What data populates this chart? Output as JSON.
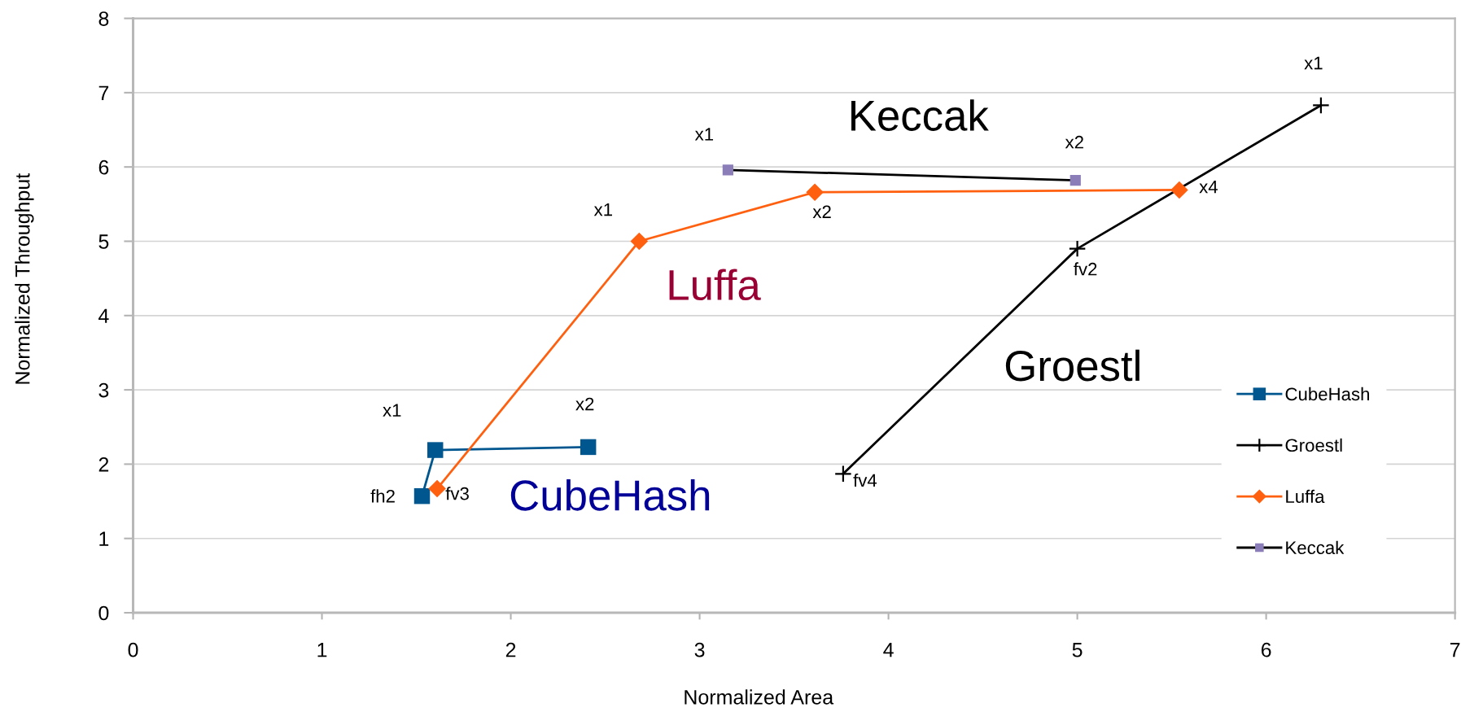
{
  "chart_data": {
    "type": "line",
    "xlabel": "Normalized Area",
    "ylabel": "Normalized Throughput",
    "xlim": [
      0,
      7
    ],
    "ylim": [
      0,
      8
    ],
    "xticks": [
      0,
      1,
      2,
      3,
      4,
      5,
      6,
      7
    ],
    "yticks": [
      0,
      1,
      2,
      3,
      4,
      5,
      6,
      7,
      8
    ],
    "grid": "y",
    "legend": "bottom right",
    "line_style": "solid",
    "series": [
      {
        "name": "CubeHash",
        "color": "#00568f",
        "marker": "square",
        "x": [
          1.53,
          1.6,
          2.41
        ],
        "values": [
          1.57,
          2.19,
          2.23
        ],
        "value_labels": [
          "fh2",
          "x1",
          "x2"
        ]
      },
      {
        "name": "Groestl",
        "color": "#000000",
        "marker": "cross",
        "x": [
          3.76,
          5.0,
          6.29
        ],
        "values": [
          1.87,
          4.9,
          6.83
        ],
        "value_labels": [
          "fv4",
          "fv2",
          "x1"
        ]
      },
      {
        "name": "Luffa",
        "color": "#ff6010",
        "marker": "diamond",
        "x": [
          1.61,
          2.68,
          3.61,
          5.54
        ],
        "values": [
          1.67,
          5.0,
          5.66,
          5.69
        ],
        "value_labels": [
          "fv3",
          "x1",
          "x2",
          "x4"
        ]
      },
      {
        "name": "Keccak",
        "color": "#000000",
        "colors": [
          "#8b7db8",
          "#8b7db8"
        ],
        "marker": "square",
        "x": [
          3.15,
          4.99
        ],
        "values": [
          5.96,
          5.82
        ],
        "value_labels": [
          "x1",
          "x2"
        ]
      }
    ],
    "annotations": [
      "Keccak",
      "Luffa",
      "Groestl",
      "CubeHash"
    ]
  }
}
